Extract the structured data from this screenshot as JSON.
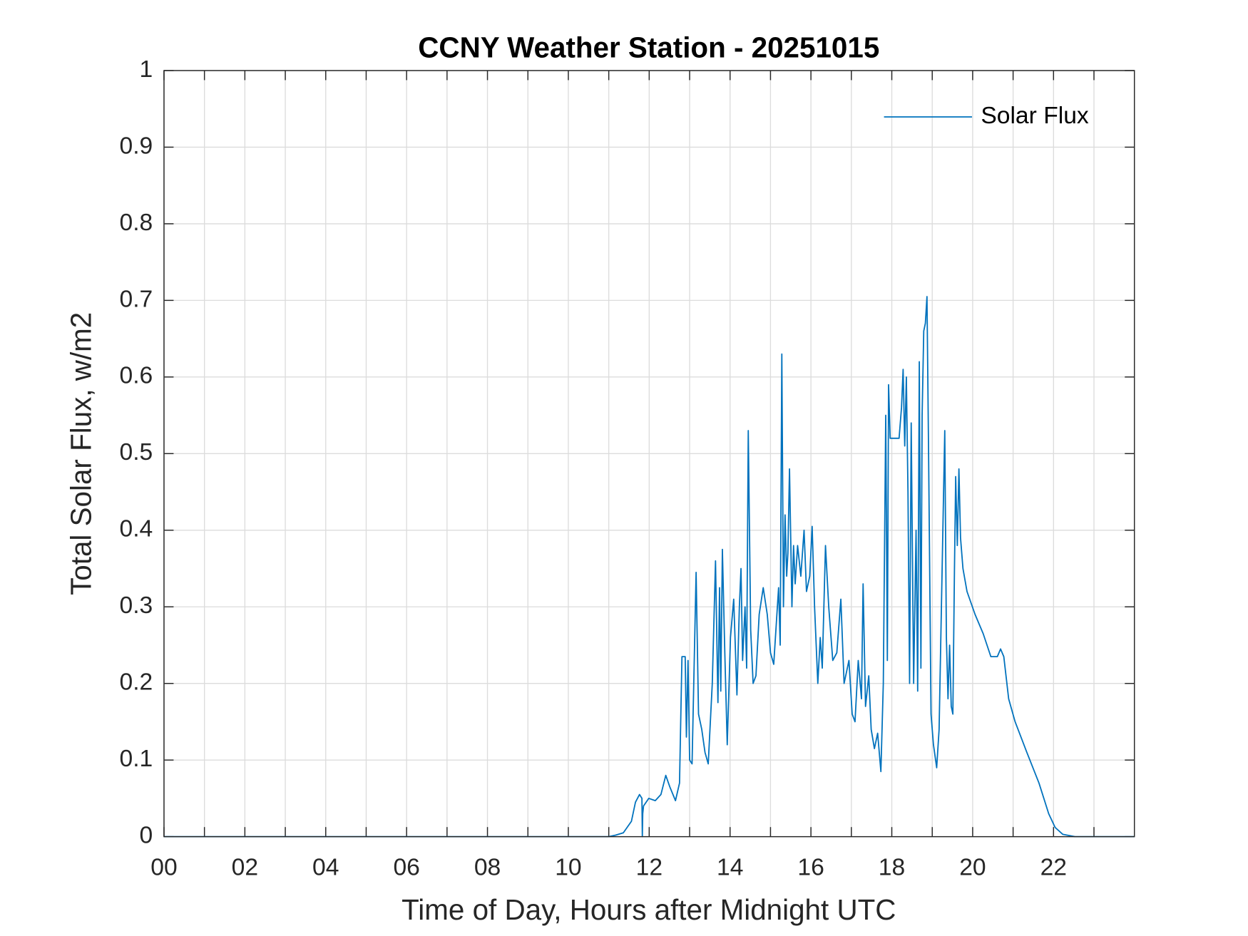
{
  "chart_data": {
    "type": "line",
    "title": "CCNY Weather Station - 20251015",
    "x_label": "Time of Day, Hours after Midnight UTC",
    "y_label": "Total Solar Flux, w/m2",
    "x": [
      0,
      11.0,
      11.17,
      11.36,
      11.56,
      11.66,
      11.76,
      11.82,
      11.83,
      11.84,
      11.86,
      11.99,
      12.15,
      12.29,
      12.41,
      12.51,
      12.65,
      12.75,
      12.81,
      12.89,
      12.92,
      12.96,
      13.0,
      13.06,
      13.16,
      13.22,
      13.3,
      13.38,
      13.46,
      13.56,
      13.64,
      13.7,
      13.74,
      13.77,
      13.81,
      13.87,
      13.93,
      14.01,
      14.09,
      14.17,
      14.23,
      14.27,
      14.31,
      14.37,
      14.41,
      14.45,
      14.51,
      14.57,
      14.64,
      14.72,
      14.82,
      14.92,
      15.0,
      15.08,
      15.2,
      15.24,
      15.28,
      15.32,
      15.36,
      15.4,
      15.43,
      15.47,
      15.53,
      15.57,
      15.61,
      15.67,
      15.75,
      15.83,
      15.89,
      15.97,
      16.03,
      16.09,
      16.17,
      16.23,
      16.28,
      16.36,
      16.44,
      16.54,
      16.64,
      16.74,
      16.82,
      16.94,
      17.02,
      17.09,
      17.17,
      17.25,
      17.29,
      17.35,
      17.43,
      17.49,
      17.57,
      17.65,
      17.73,
      17.79,
      17.85,
      17.89,
      17.92,
      17.96,
      18.08,
      18.18,
      18.24,
      18.28,
      18.32,
      18.36,
      18.4,
      18.44,
      18.48,
      18.54,
      18.6,
      18.64,
      18.68,
      18.72,
      18.75,
      18.79,
      18.83,
      18.87,
      18.91,
      18.97,
      19.03,
      19.11,
      19.17,
      19.27,
      19.31,
      19.35,
      19.39,
      19.43,
      19.47,
      19.51,
      19.55,
      19.58,
      19.62,
      19.66,
      19.7,
      19.76,
      19.86,
      20.06,
      20.26,
      20.45,
      20.61,
      20.69,
      20.77,
      20.89,
      21.05,
      21.34,
      21.64,
      21.88,
      22.04,
      22.23,
      22.53,
      24
    ],
    "series": [
      {
        "name": "Solar Flux",
        "color": "#0072bd",
        "values": [
          0,
          0,
          0.002,
          0.005,
          0.02,
          0.045,
          0.055,
          0.05,
          0,
          0.03,
          0.04,
          0.05,
          0.047,
          0.055,
          0.08,
          0.065,
          0.047,
          0.07,
          0.235,
          0.235,
          0.13,
          0.23,
          0.1,
          0.095,
          0.345,
          0.16,
          0.14,
          0.11,
          0.095,
          0.2,
          0.36,
          0.175,
          0.325,
          0.19,
          0.375,
          0.24,
          0.12,
          0.26,
          0.31,
          0.185,
          0.3,
          0.35,
          0.23,
          0.3,
          0.22,
          0.53,
          0.27,
          0.2,
          0.21,
          0.29,
          0.325,
          0.29,
          0.24,
          0.225,
          0.325,
          0.25,
          0.63,
          0.3,
          0.42,
          0.34,
          0.37,
          0.48,
          0.3,
          0.38,
          0.33,
          0.38,
          0.34,
          0.4,
          0.32,
          0.34,
          0.405,
          0.3,
          0.2,
          0.26,
          0.22,
          0.38,
          0.3,
          0.23,
          0.24,
          0.31,
          0.2,
          0.23,
          0.16,
          0.15,
          0.23,
          0.18,
          0.33,
          0.17,
          0.21,
          0.14,
          0.115,
          0.135,
          0.085,
          0.2,
          0.55,
          0.23,
          0.59,
          0.52,
          0.52,
          0.52,
          0.56,
          0.61,
          0.51,
          0.6,
          0.45,
          0.2,
          0.54,
          0.2,
          0.4,
          0.19,
          0.62,
          0.22,
          0.55,
          0.66,
          0.67,
          0.705,
          0.5,
          0.16,
          0.12,
          0.09,
          0.14,
          0.42,
          0.53,
          0.26,
          0.18,
          0.25,
          0.17,
          0.16,
          0.35,
          0.47,
          0.38,
          0.48,
          0.39,
          0.35,
          0.32,
          0.29,
          0.265,
          0.235,
          0.235,
          0.245,
          0.235,
          0.18,
          0.15,
          0.11,
          0.07,
          0.03,
          0.012,
          0.003,
          0,
          0
        ]
      }
    ],
    "xlim": [
      0,
      24
    ],
    "xticks": [
      {
        "value": 0,
        "label": "00"
      },
      {
        "value": 2,
        "label": "02"
      },
      {
        "value": 4,
        "label": "04"
      },
      {
        "value": 6,
        "label": "06"
      },
      {
        "value": 8,
        "label": "08"
      },
      10,
      12,
      14,
      16,
      18,
      20,
      22
    ],
    "xminorticks": [
      1,
      3,
      5,
      7,
      9,
      11,
      13,
      15,
      17,
      19,
      21,
      23
    ],
    "ylim": [
      0,
      1
    ],
    "yticks": [
      0,
      0.1,
      0.2,
      0.3,
      0.4,
      0.5,
      0.6,
      0.7,
      0.8,
      0.9,
      1
    ],
    "grid": true,
    "legend": "top-right"
  }
}
